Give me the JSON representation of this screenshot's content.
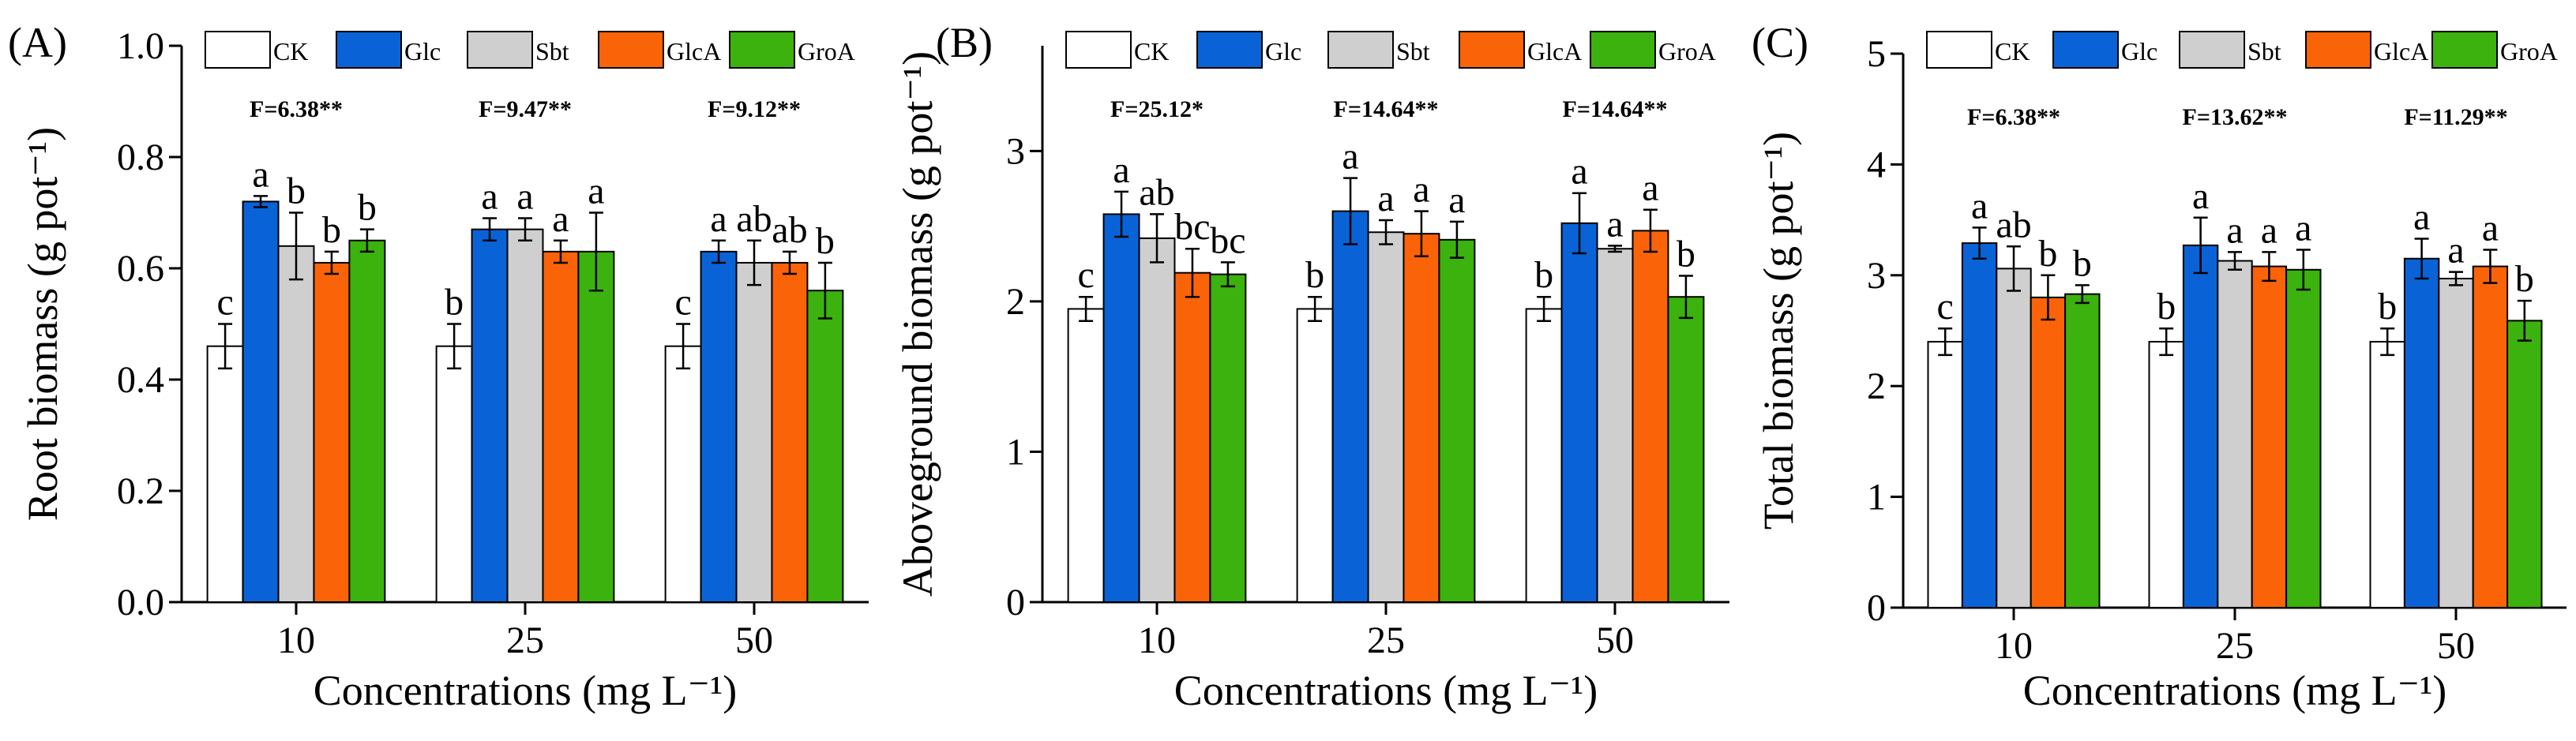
{
  "colors": {
    "CK": "#ffffff",
    "Glc": "#0a63d6",
    "Sbt": "#cfcfcf",
    "GlcA": "#fb6308",
    "GroA": "#3bb20e"
  },
  "chart_data": [
    {
      "type": "bar",
      "panel_label": "(A)",
      "title": "",
      "xlabel": "Concentrations (mg L⁻¹)",
      "ylabel": "Root biomass (g pot⁻¹)",
      "ylim": [
        0.0,
        1.0
      ],
      "yticks": [
        "0.0",
        "0.2",
        "0.4",
        "0.6",
        "0.8",
        "1.0"
      ],
      "grid": false,
      "legend_position": "top",
      "categories": [
        "10",
        "25",
        "50"
      ],
      "f_stats": [
        "F=6.38**",
        "F=9.47**",
        "F=9.12**"
      ],
      "series": [
        {
          "name": "CK",
          "values": [
            0.46,
            0.46,
            0.46
          ],
          "errors": [
            0.04,
            0.04,
            0.04
          ],
          "letters": [
            "c",
            "b",
            "c"
          ]
        },
        {
          "name": "Glc",
          "values": [
            0.72,
            0.67,
            0.63
          ],
          "errors": [
            0.01,
            0.02,
            0.02
          ],
          "letters": [
            "a",
            "a",
            "a"
          ]
        },
        {
          "name": "Sbt",
          "values": [
            0.64,
            0.67,
            0.61
          ],
          "errors": [
            0.06,
            0.02,
            0.04
          ],
          "letters": [
            "b",
            "a",
            "ab"
          ]
        },
        {
          "name": "GlcA",
          "values": [
            0.61,
            0.63,
            0.61
          ],
          "errors": [
            0.02,
            0.02,
            0.02
          ],
          "letters": [
            "b",
            "a",
            "ab"
          ]
        },
        {
          "name": "GroA",
          "values": [
            0.65,
            0.63,
            0.56
          ],
          "errors": [
            0.02,
            0.07,
            0.05
          ],
          "letters": [
            "b",
            "a",
            "b"
          ]
        }
      ]
    },
    {
      "type": "bar",
      "panel_label": "(B)",
      "title": "",
      "xlabel": "Concentrations (mg L⁻¹)",
      "ylabel": "Aboveground biomass (g pot⁻¹)",
      "ylim": [
        0,
        3.7
      ],
      "yticks": [
        "0",
        "1",
        "2",
        "3"
      ],
      "grid": false,
      "legend_position": "top",
      "categories": [
        "10",
        "25",
        "50"
      ],
      "f_stats": [
        "F=25.12*",
        "F=14.64**",
        "F=14.64**"
      ],
      "series": [
        {
          "name": "CK",
          "values": [
            1.95,
            1.95,
            1.95
          ],
          "errors": [
            0.08,
            0.08,
            0.08
          ],
          "letters": [
            "c",
            "b",
            "b"
          ]
        },
        {
          "name": "Glc",
          "values": [
            2.58,
            2.6,
            2.52
          ],
          "errors": [
            0.15,
            0.22,
            0.2
          ],
          "letters": [
            "a",
            "a",
            "a"
          ]
        },
        {
          "name": "Sbt",
          "values": [
            2.42,
            2.46,
            2.35
          ],
          "errors": [
            0.16,
            0.08,
            0.02
          ],
          "letters": [
            "ab",
            "a",
            "a"
          ]
        },
        {
          "name": "GlcA",
          "values": [
            2.19,
            2.45,
            2.47
          ],
          "errors": [
            0.16,
            0.15,
            0.14
          ],
          "letters": [
            "bc",
            "a",
            "a"
          ]
        },
        {
          "name": "GroA",
          "values": [
            2.18,
            2.41,
            2.03
          ],
          "errors": [
            0.08,
            0.12,
            0.14
          ],
          "letters": [
            "bc",
            "a",
            "b"
          ]
        }
      ]
    },
    {
      "type": "bar",
      "panel_label": "(C)",
      "title": "",
      "xlabel": "Concentrations (mg L⁻¹)",
      "ylabel": "Total biomass (g pot⁻¹)",
      "ylim": [
        0,
        5
      ],
      "yticks": [
        "0",
        "1",
        "2",
        "3",
        "4",
        "5"
      ],
      "grid": false,
      "legend_position": "top",
      "categories": [
        "10",
        "25",
        "50"
      ],
      "f_stats": [
        "F=6.38**",
        "F=13.62**",
        "F=11.29**"
      ],
      "series": [
        {
          "name": "CK",
          "values": [
            2.4,
            2.4,
            2.4
          ],
          "errors": [
            0.12,
            0.12,
            0.12
          ],
          "letters": [
            "c",
            "b",
            "b"
          ]
        },
        {
          "name": "Glc",
          "values": [
            3.29,
            3.27,
            3.15
          ],
          "errors": [
            0.14,
            0.25,
            0.18
          ],
          "letters": [
            "a",
            "a",
            "a"
          ]
        },
        {
          "name": "Sbt",
          "values": [
            3.06,
            3.13,
            2.97
          ],
          "errors": [
            0.2,
            0.08,
            0.06
          ],
          "letters": [
            "ab",
            "a",
            "a"
          ]
        },
        {
          "name": "GlcA",
          "values": [
            2.8,
            3.08,
            3.08
          ],
          "errors": [
            0.2,
            0.13,
            0.15
          ],
          "letters": [
            "b",
            "a",
            "a"
          ]
        },
        {
          "name": "GroA",
          "values": [
            2.83,
            3.05,
            2.59
          ],
          "errors": [
            0.08,
            0.18,
            0.18
          ],
          "letters": [
            "b",
            "a",
            "b"
          ]
        }
      ]
    }
  ]
}
